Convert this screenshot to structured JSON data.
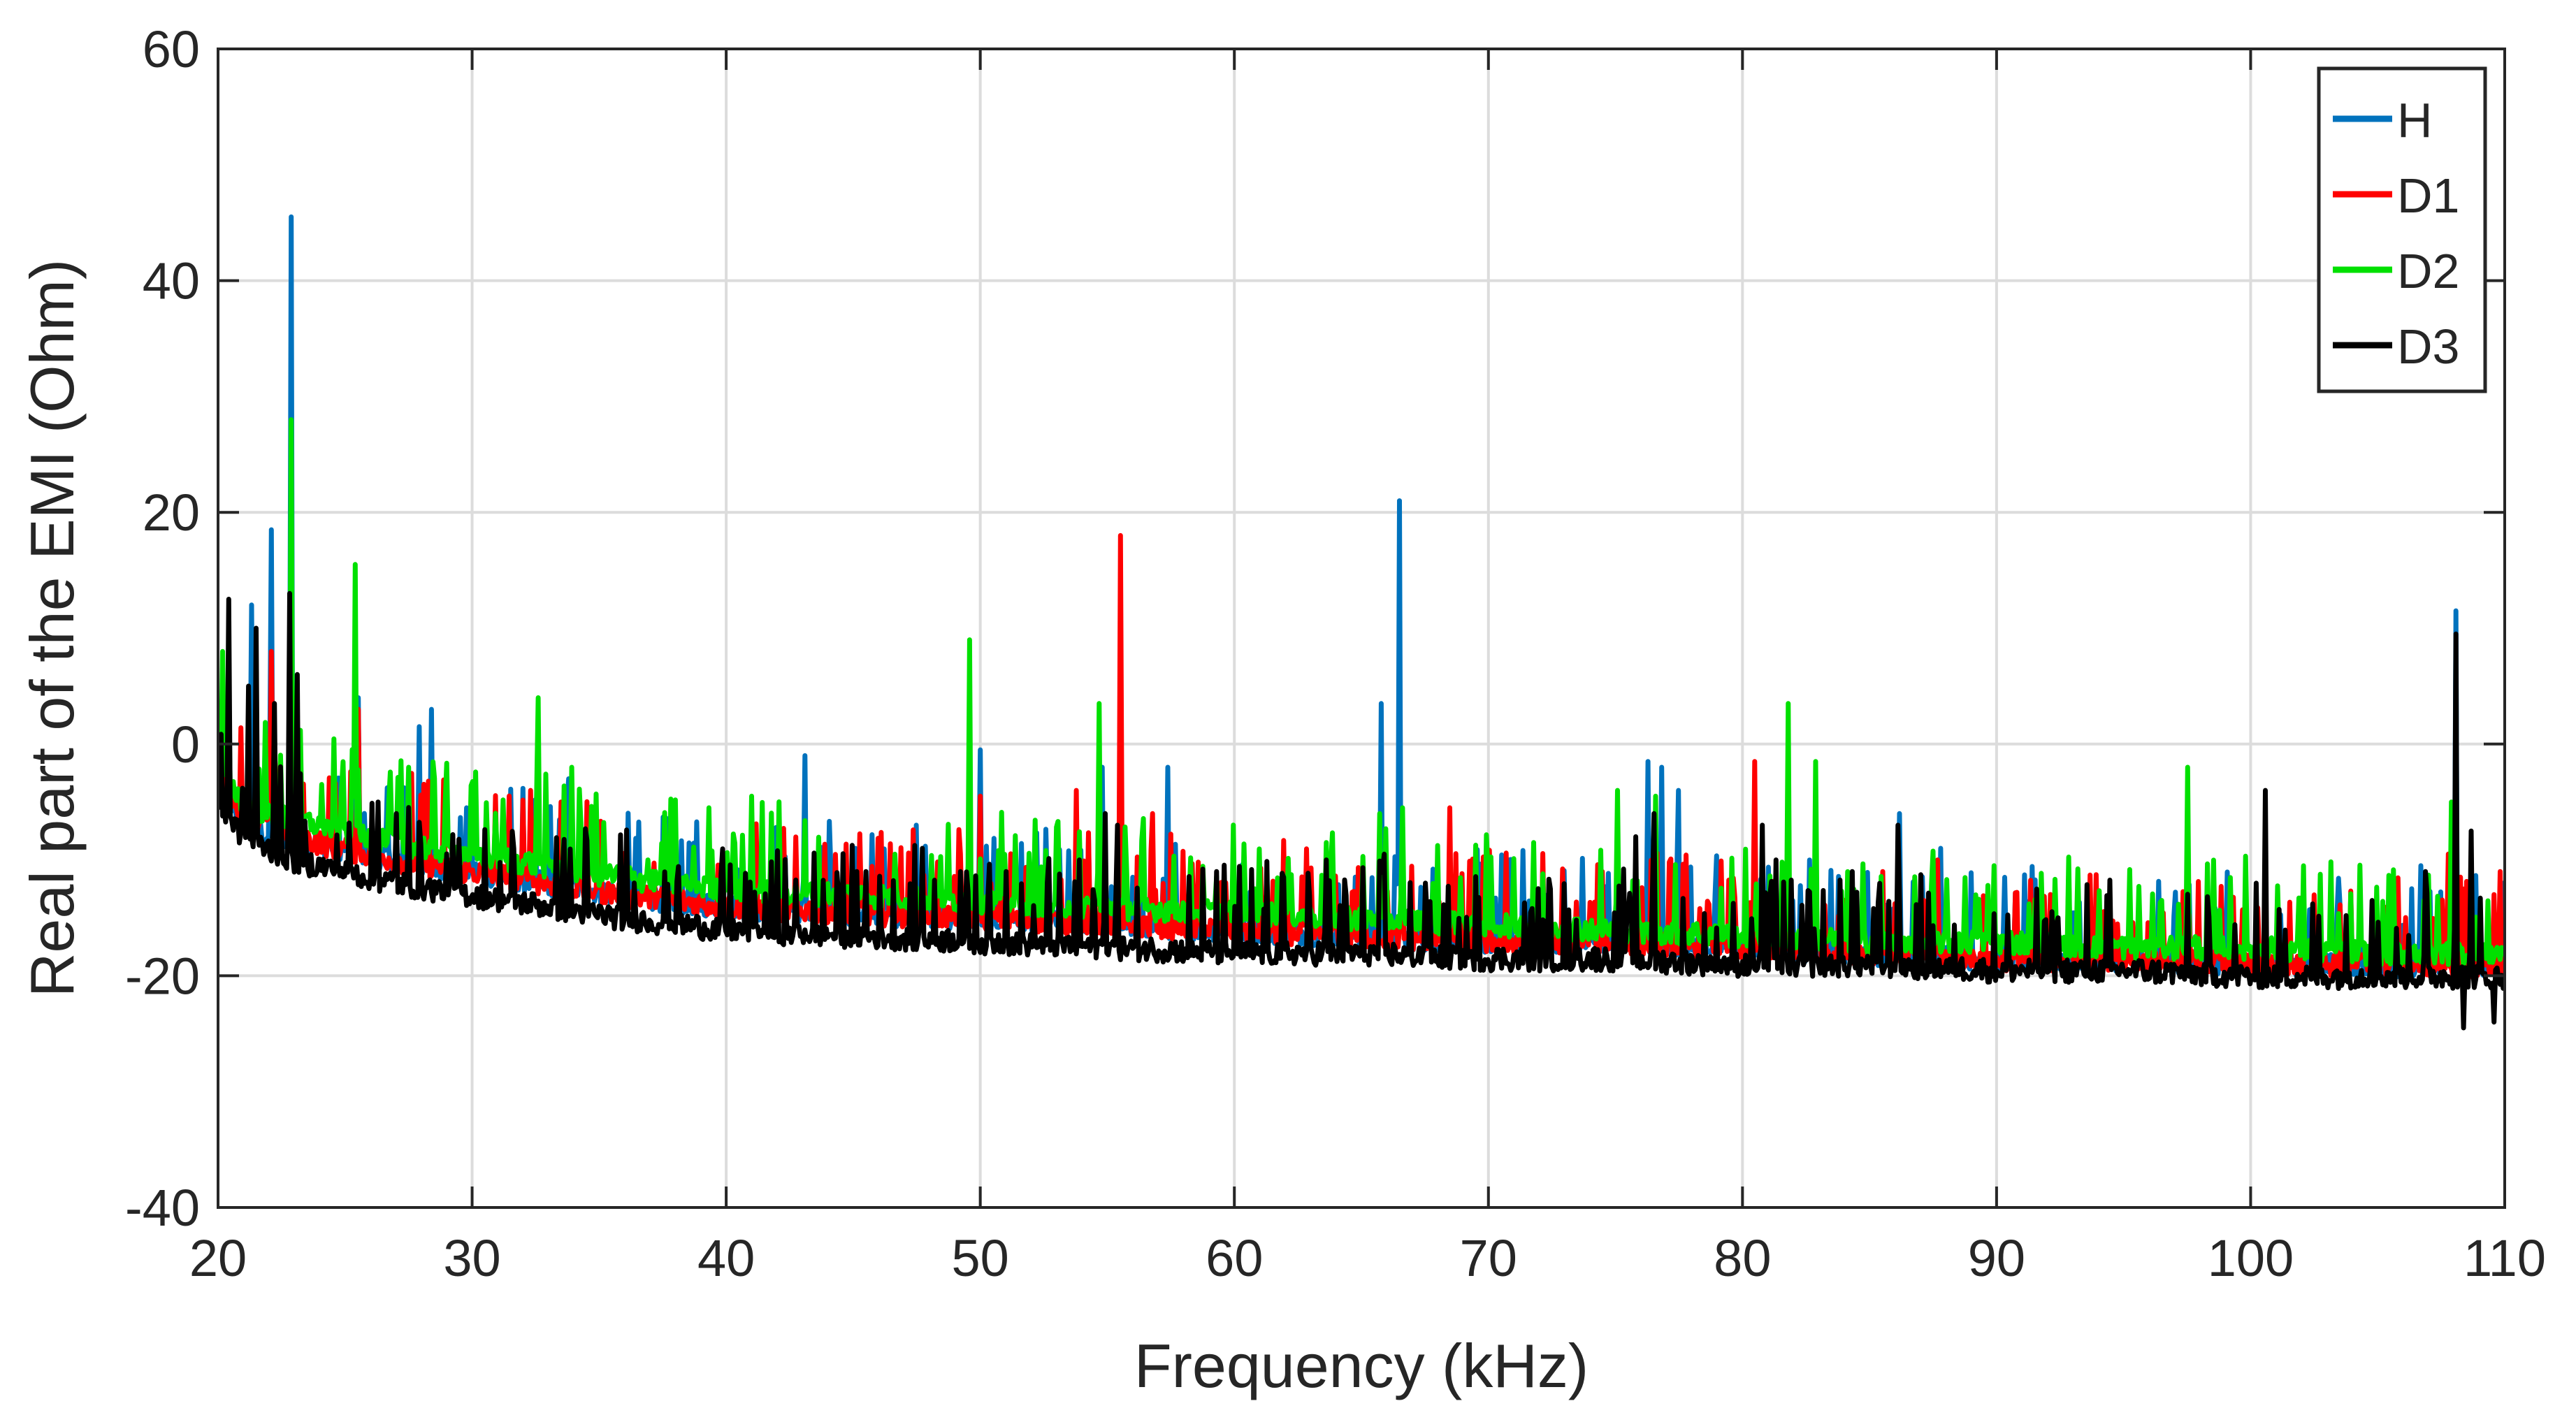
{
  "chart_data": {
    "type": "line",
    "title": "",
    "xlabel": "Frequency (kHz)",
    "ylabel": "Real part of the EMI (Ohm)",
    "xlim": [
      20,
      110
    ],
    "ylim": [
      -40,
      60
    ],
    "xticks": [
      20,
      30,
      40,
      50,
      60,
      70,
      80,
      90,
      100,
      110
    ],
    "yticks": [
      -40,
      -20,
      0,
      20,
      40,
      60
    ],
    "grid": true,
    "legend_position": "top-right",
    "colors": {
      "H": "#0072BD",
      "D1": "#FF0000",
      "D2": "#00E000",
      "D3": "#000000"
    },
    "series": [
      {
        "name": "H",
        "baseline": [
          [
            20,
            -3
          ],
          [
            21,
            -7
          ],
          [
            22,
            -8
          ],
          [
            23,
            -8
          ],
          [
            25,
            -9
          ],
          [
            27,
            -10
          ],
          [
            30,
            -11
          ],
          [
            33,
            -12
          ],
          [
            36,
            -13
          ],
          [
            40,
            -14
          ],
          [
            45,
            -14.5
          ],
          [
            50,
            -15
          ],
          [
            55,
            -15.5
          ],
          [
            60,
            -16
          ],
          [
            65,
            -16.5
          ],
          [
            70,
            -17
          ],
          [
            75,
            -17
          ],
          [
            80,
            -17.5
          ],
          [
            85,
            -18
          ],
          [
            90,
            -18.5
          ],
          [
            95,
            -18.5
          ],
          [
            100,
            -19
          ],
          [
            105,
            -19
          ],
          [
            108,
            -19
          ],
          [
            110,
            -19
          ]
        ],
        "peaks": [
          [
            20.3,
            3
          ],
          [
            21.3,
            12
          ],
          [
            22.1,
            18.5
          ],
          [
            22.9,
            45.5
          ],
          [
            25.5,
            4
          ],
          [
            27.9,
            1.5
          ],
          [
            28.4,
            3
          ],
          [
            29.8,
            -5.5
          ],
          [
            33.8,
            -3
          ],
          [
            41.9,
            -8
          ],
          [
            43.1,
            -1
          ],
          [
            45.1,
            -9
          ],
          [
            47.5,
            -7
          ],
          [
            50,
            -0.5
          ],
          [
            54.8,
            -2
          ],
          [
            57.4,
            -2
          ],
          [
            65.8,
            3.5
          ],
          [
            66.5,
            21
          ],
          [
            70.8,
            -10
          ],
          [
            76.3,
            -1.5
          ],
          [
            76.8,
            -2
          ],
          [
            77.5,
            -4
          ],
          [
            82.9,
            -6.5
          ],
          [
            86.2,
            -6
          ],
          [
            87.8,
            -9
          ],
          [
            90.3,
            -11.5
          ],
          [
            95.6,
            -15
          ],
          [
            98.5,
            -13.5
          ],
          [
            103.5,
            -14
          ],
          [
            104.3,
            -14
          ],
          [
            106.7,
            -10.5
          ],
          [
            108.1,
            11.5
          ]
        ]
      },
      {
        "name": "D1",
        "baseline": [
          [
            20,
            -3
          ],
          [
            21,
            -6
          ],
          [
            22,
            -7
          ],
          [
            23,
            -8
          ],
          [
            25,
            -9
          ],
          [
            27,
            -10
          ],
          [
            30,
            -11
          ],
          [
            33,
            -12
          ],
          [
            36,
            -13
          ],
          [
            40,
            -14
          ],
          [
            45,
            -14.5
          ],
          [
            50,
            -15
          ],
          [
            55,
            -15.5
          ],
          [
            60,
            -16
          ],
          [
            65,
            -16.5
          ],
          [
            70,
            -17
          ],
          [
            75,
            -17
          ],
          [
            80,
            -17.5
          ],
          [
            85,
            -18
          ],
          [
            90,
            -18.5
          ],
          [
            95,
            -18.5
          ],
          [
            100,
            -19
          ],
          [
            105,
            -19
          ],
          [
            108,
            -19
          ],
          [
            110,
            -19
          ]
        ],
        "peaks": [
          [
            20.4,
            4
          ],
          [
            22.1,
            8
          ],
          [
            22.9,
            6
          ],
          [
            25.5,
            3
          ],
          [
            32.3,
            -4
          ],
          [
            33.5,
            -5
          ],
          [
            50,
            -4.5
          ],
          [
            53.8,
            -4
          ],
          [
            55.5,
            18
          ],
          [
            56.8,
            -6
          ],
          [
            68.5,
            -5.5
          ],
          [
            74.5,
            -11
          ],
          [
            80.5,
            -1.5
          ],
          [
            85.5,
            -11
          ],
          [
            87.7,
            -10
          ],
          [
            99.2,
            -16.5
          ],
          [
            107.8,
            -9.5
          ],
          [
            109.8,
            -11
          ]
        ]
      },
      {
        "name": "D2",
        "baseline": [
          [
            20,
            -2
          ],
          [
            21,
            -5
          ],
          [
            22,
            -6
          ],
          [
            23,
            -6.5
          ],
          [
            25,
            -7.5
          ],
          [
            27,
            -8.5
          ],
          [
            30,
            -9.5
          ],
          [
            33,
            -10.5
          ],
          [
            36,
            -11.5
          ],
          [
            40,
            -12.5
          ],
          [
            45,
            -13
          ],
          [
            50,
            -13.5
          ],
          [
            55,
            -14
          ],
          [
            60,
            -14.5
          ],
          [
            65,
            -15
          ],
          [
            70,
            -15.5
          ],
          [
            75,
            -16
          ],
          [
            80,
            -16.5
          ],
          [
            85,
            -17
          ],
          [
            90,
            -17
          ],
          [
            95,
            -17.5
          ],
          [
            100,
            -17.5
          ],
          [
            105,
            -18
          ],
          [
            108,
            -18
          ],
          [
            110,
            -18
          ]
        ],
        "peaks": [
          [
            20.2,
            8
          ],
          [
            22.9,
            28
          ],
          [
            25.4,
            15.5
          ],
          [
            27.5,
            -2
          ],
          [
            32.6,
            4
          ],
          [
            33.9,
            -2
          ],
          [
            36.9,
            -10
          ],
          [
            39.3,
            -5.5
          ],
          [
            41,
            -4.5
          ],
          [
            49.6,
            9
          ],
          [
            54.7,
            3.5
          ],
          [
            60.8,
            -12.5
          ],
          [
            63.6,
            -8.5
          ],
          [
            65.7,
            -6
          ],
          [
            66.6,
            -5.5
          ],
          [
            71.8,
            -8.5
          ],
          [
            75.1,
            -4
          ],
          [
            76.6,
            -4.5
          ],
          [
            81.8,
            3.5
          ],
          [
            82.9,
            -1.5
          ],
          [
            89.9,
            -10.5
          ],
          [
            96.5,
            -13.5
          ],
          [
            97.5,
            -2
          ],
          [
            106.8,
            -13.5
          ],
          [
            107.9,
            -5
          ]
        ]
      },
      {
        "name": "D3",
        "baseline": [
          [
            20,
            -5
          ],
          [
            21,
            -8
          ],
          [
            22,
            -9
          ],
          [
            23,
            -10
          ],
          [
            25,
            -11
          ],
          [
            27,
            -12
          ],
          [
            30,
            -13
          ],
          [
            33,
            -14
          ],
          [
            36,
            -15
          ],
          [
            40,
            -16
          ],
          [
            45,
            -16.5
          ],
          [
            50,
            -17
          ],
          [
            55,
            -17.5
          ],
          [
            60,
            -18
          ],
          [
            65,
            -18
          ],
          [
            70,
            -18.5
          ],
          [
            75,
            -18.5
          ],
          [
            80,
            -19
          ],
          [
            85,
            -19
          ],
          [
            90,
            -19.5
          ],
          [
            95,
            -19.5
          ],
          [
            100,
            -20
          ],
          [
            105,
            -20
          ],
          [
            108,
            -20
          ],
          [
            110,
            -20
          ]
        ],
        "peaks": [
          [
            20.4,
            12.5
          ],
          [
            21.2,
            5
          ],
          [
            21.5,
            10
          ],
          [
            22.2,
            3.5
          ],
          [
            22.8,
            13
          ],
          [
            23.1,
            6
          ],
          [
            26.3,
            -5
          ],
          [
            27,
            -6
          ],
          [
            45.5,
            -11
          ],
          [
            47.7,
            -9
          ],
          [
            49.2,
            -11
          ],
          [
            51,
            -11
          ],
          [
            53.9,
            -10
          ],
          [
            54.9,
            -6
          ],
          [
            55.4,
            -7
          ],
          [
            59.3,
            -11
          ],
          [
            63.6,
            -10
          ],
          [
            65.9,
            -9.5
          ],
          [
            67.5,
            -12
          ],
          [
            75.8,
            -8
          ],
          [
            76.5,
            -6
          ],
          [
            80.8,
            -7
          ],
          [
            81.3,
            -10
          ],
          [
            84.3,
            -11
          ],
          [
            86.1,
            -7
          ],
          [
            92.4,
            -15
          ],
          [
            100.6,
            -4
          ],
          [
            104.8,
            -13.5
          ],
          [
            106.9,
            -11
          ],
          [
            108.1,
            9.5
          ],
          [
            108.7,
            -7.5
          ]
        ],
        "dips": [
          [
            108.4,
            -24.5
          ],
          [
            109.6,
            -24
          ]
        ]
      }
    ]
  }
}
